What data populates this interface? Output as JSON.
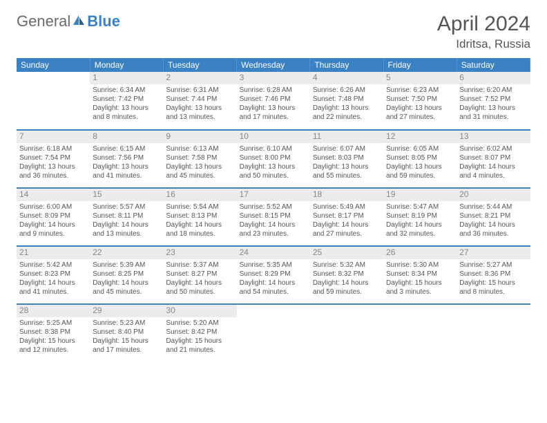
{
  "logo": {
    "text1": "General",
    "text2": "Blue",
    "accent_color": "#3a82c4"
  },
  "header": {
    "month": "April 2024",
    "location": "Idritsa, Russia"
  },
  "colors": {
    "header_bg": "#3a82c4",
    "header_text": "#ffffff",
    "rule": "#3a82c4",
    "daynum_bg": "#ececec",
    "text": "#555555"
  },
  "daysOfWeek": [
    "Sunday",
    "Monday",
    "Tuesday",
    "Wednesday",
    "Thursday",
    "Friday",
    "Saturday"
  ],
  "layout": {
    "firstDayIndex": 1,
    "numDays": 30
  },
  "days": {
    "1": {
      "sunrise": "6:34 AM",
      "sunset": "7:42 PM",
      "daylight": "13 hours and 8 minutes."
    },
    "2": {
      "sunrise": "6:31 AM",
      "sunset": "7:44 PM",
      "daylight": "13 hours and 13 minutes."
    },
    "3": {
      "sunrise": "6:28 AM",
      "sunset": "7:46 PM",
      "daylight": "13 hours and 17 minutes."
    },
    "4": {
      "sunrise": "6:26 AM",
      "sunset": "7:48 PM",
      "daylight": "13 hours and 22 minutes."
    },
    "5": {
      "sunrise": "6:23 AM",
      "sunset": "7:50 PM",
      "daylight": "13 hours and 27 minutes."
    },
    "6": {
      "sunrise": "6:20 AM",
      "sunset": "7:52 PM",
      "daylight": "13 hours and 31 minutes."
    },
    "7": {
      "sunrise": "6:18 AM",
      "sunset": "7:54 PM",
      "daylight": "13 hours and 36 minutes."
    },
    "8": {
      "sunrise": "6:15 AM",
      "sunset": "7:56 PM",
      "daylight": "13 hours and 41 minutes."
    },
    "9": {
      "sunrise": "6:13 AM",
      "sunset": "7:58 PM",
      "daylight": "13 hours and 45 minutes."
    },
    "10": {
      "sunrise": "6:10 AM",
      "sunset": "8:00 PM",
      "daylight": "13 hours and 50 minutes."
    },
    "11": {
      "sunrise": "6:07 AM",
      "sunset": "8:03 PM",
      "daylight": "13 hours and 55 minutes."
    },
    "12": {
      "sunrise": "6:05 AM",
      "sunset": "8:05 PM",
      "daylight": "13 hours and 59 minutes."
    },
    "13": {
      "sunrise": "6:02 AM",
      "sunset": "8:07 PM",
      "daylight": "14 hours and 4 minutes."
    },
    "14": {
      "sunrise": "6:00 AM",
      "sunset": "8:09 PM",
      "daylight": "14 hours and 9 minutes."
    },
    "15": {
      "sunrise": "5:57 AM",
      "sunset": "8:11 PM",
      "daylight": "14 hours and 13 minutes."
    },
    "16": {
      "sunrise": "5:54 AM",
      "sunset": "8:13 PM",
      "daylight": "14 hours and 18 minutes."
    },
    "17": {
      "sunrise": "5:52 AM",
      "sunset": "8:15 PM",
      "daylight": "14 hours and 23 minutes."
    },
    "18": {
      "sunrise": "5:49 AM",
      "sunset": "8:17 PM",
      "daylight": "14 hours and 27 minutes."
    },
    "19": {
      "sunrise": "5:47 AM",
      "sunset": "8:19 PM",
      "daylight": "14 hours and 32 minutes."
    },
    "20": {
      "sunrise": "5:44 AM",
      "sunset": "8:21 PM",
      "daylight": "14 hours and 36 minutes."
    },
    "21": {
      "sunrise": "5:42 AM",
      "sunset": "8:23 PM",
      "daylight": "14 hours and 41 minutes."
    },
    "22": {
      "sunrise": "5:39 AM",
      "sunset": "8:25 PM",
      "daylight": "14 hours and 45 minutes."
    },
    "23": {
      "sunrise": "5:37 AM",
      "sunset": "8:27 PM",
      "daylight": "14 hours and 50 minutes."
    },
    "24": {
      "sunrise": "5:35 AM",
      "sunset": "8:29 PM",
      "daylight": "14 hours and 54 minutes."
    },
    "25": {
      "sunrise": "5:32 AM",
      "sunset": "8:32 PM",
      "daylight": "14 hours and 59 minutes."
    },
    "26": {
      "sunrise": "5:30 AM",
      "sunset": "8:34 PM",
      "daylight": "15 hours and 3 minutes."
    },
    "27": {
      "sunrise": "5:27 AM",
      "sunset": "8:36 PM",
      "daylight": "15 hours and 8 minutes."
    },
    "28": {
      "sunrise": "5:25 AM",
      "sunset": "8:38 PM",
      "daylight": "15 hours and 12 minutes."
    },
    "29": {
      "sunrise": "5:23 AM",
      "sunset": "8:40 PM",
      "daylight": "15 hours and 17 minutes."
    },
    "30": {
      "sunrise": "5:20 AM",
      "sunset": "8:42 PM",
      "daylight": "15 hours and 21 minutes."
    }
  },
  "labels": {
    "sunrise": "Sunrise:",
    "sunset": "Sunset:",
    "daylight": "Daylight:"
  }
}
